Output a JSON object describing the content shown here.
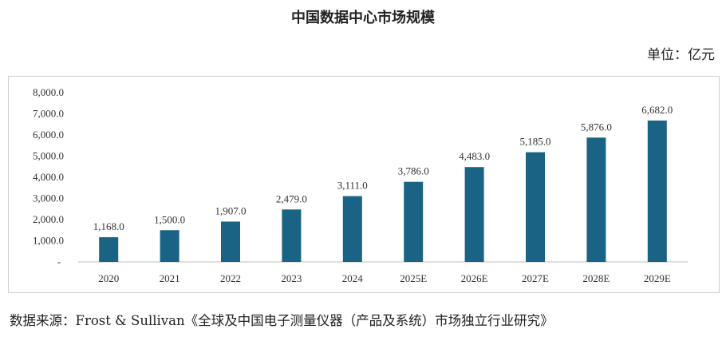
{
  "title": "中国数据中心市场规模",
  "unit": "单位：亿元",
  "source": "数据来源：Frost & Sullivan《全球及中国电子测量仪器（产品及系统）市场独立行业研究》",
  "colors": {
    "bar": "#1b6384",
    "axis": "#bfbfbf"
  },
  "chart_data": {
    "type": "bar",
    "categories": [
      "2020",
      "2021",
      "2022",
      "2023",
      "2024",
      "2025E",
      "2026E",
      "2027E",
      "2028E",
      "2029E"
    ],
    "values": [
      1168.0,
      1500.0,
      1907.0,
      2479.0,
      3111.0,
      3786.0,
      4483.0,
      5185.0,
      5876.0,
      6682.0
    ],
    "data_labels": [
      "1,168.0",
      "1,500.0",
      "1,907.0",
      "2,479.0",
      "3,111.0",
      "3,786.0",
      "4,483.0",
      "5,185.0",
      "5,876.0",
      "6,682.0"
    ],
    "ylim": [
      0,
      8000
    ],
    "yticks": [
      0,
      1000,
      2000,
      3000,
      4000,
      5000,
      6000,
      7000,
      8000
    ],
    "ytick_labels": [
      "-",
      "1,000.0",
      "2,000.0",
      "3,000.0",
      "4,000.0",
      "5,000.0",
      "6,000.0",
      "7,000.0",
      "8,000.0"
    ],
    "grid": false,
    "legend": "none"
  }
}
